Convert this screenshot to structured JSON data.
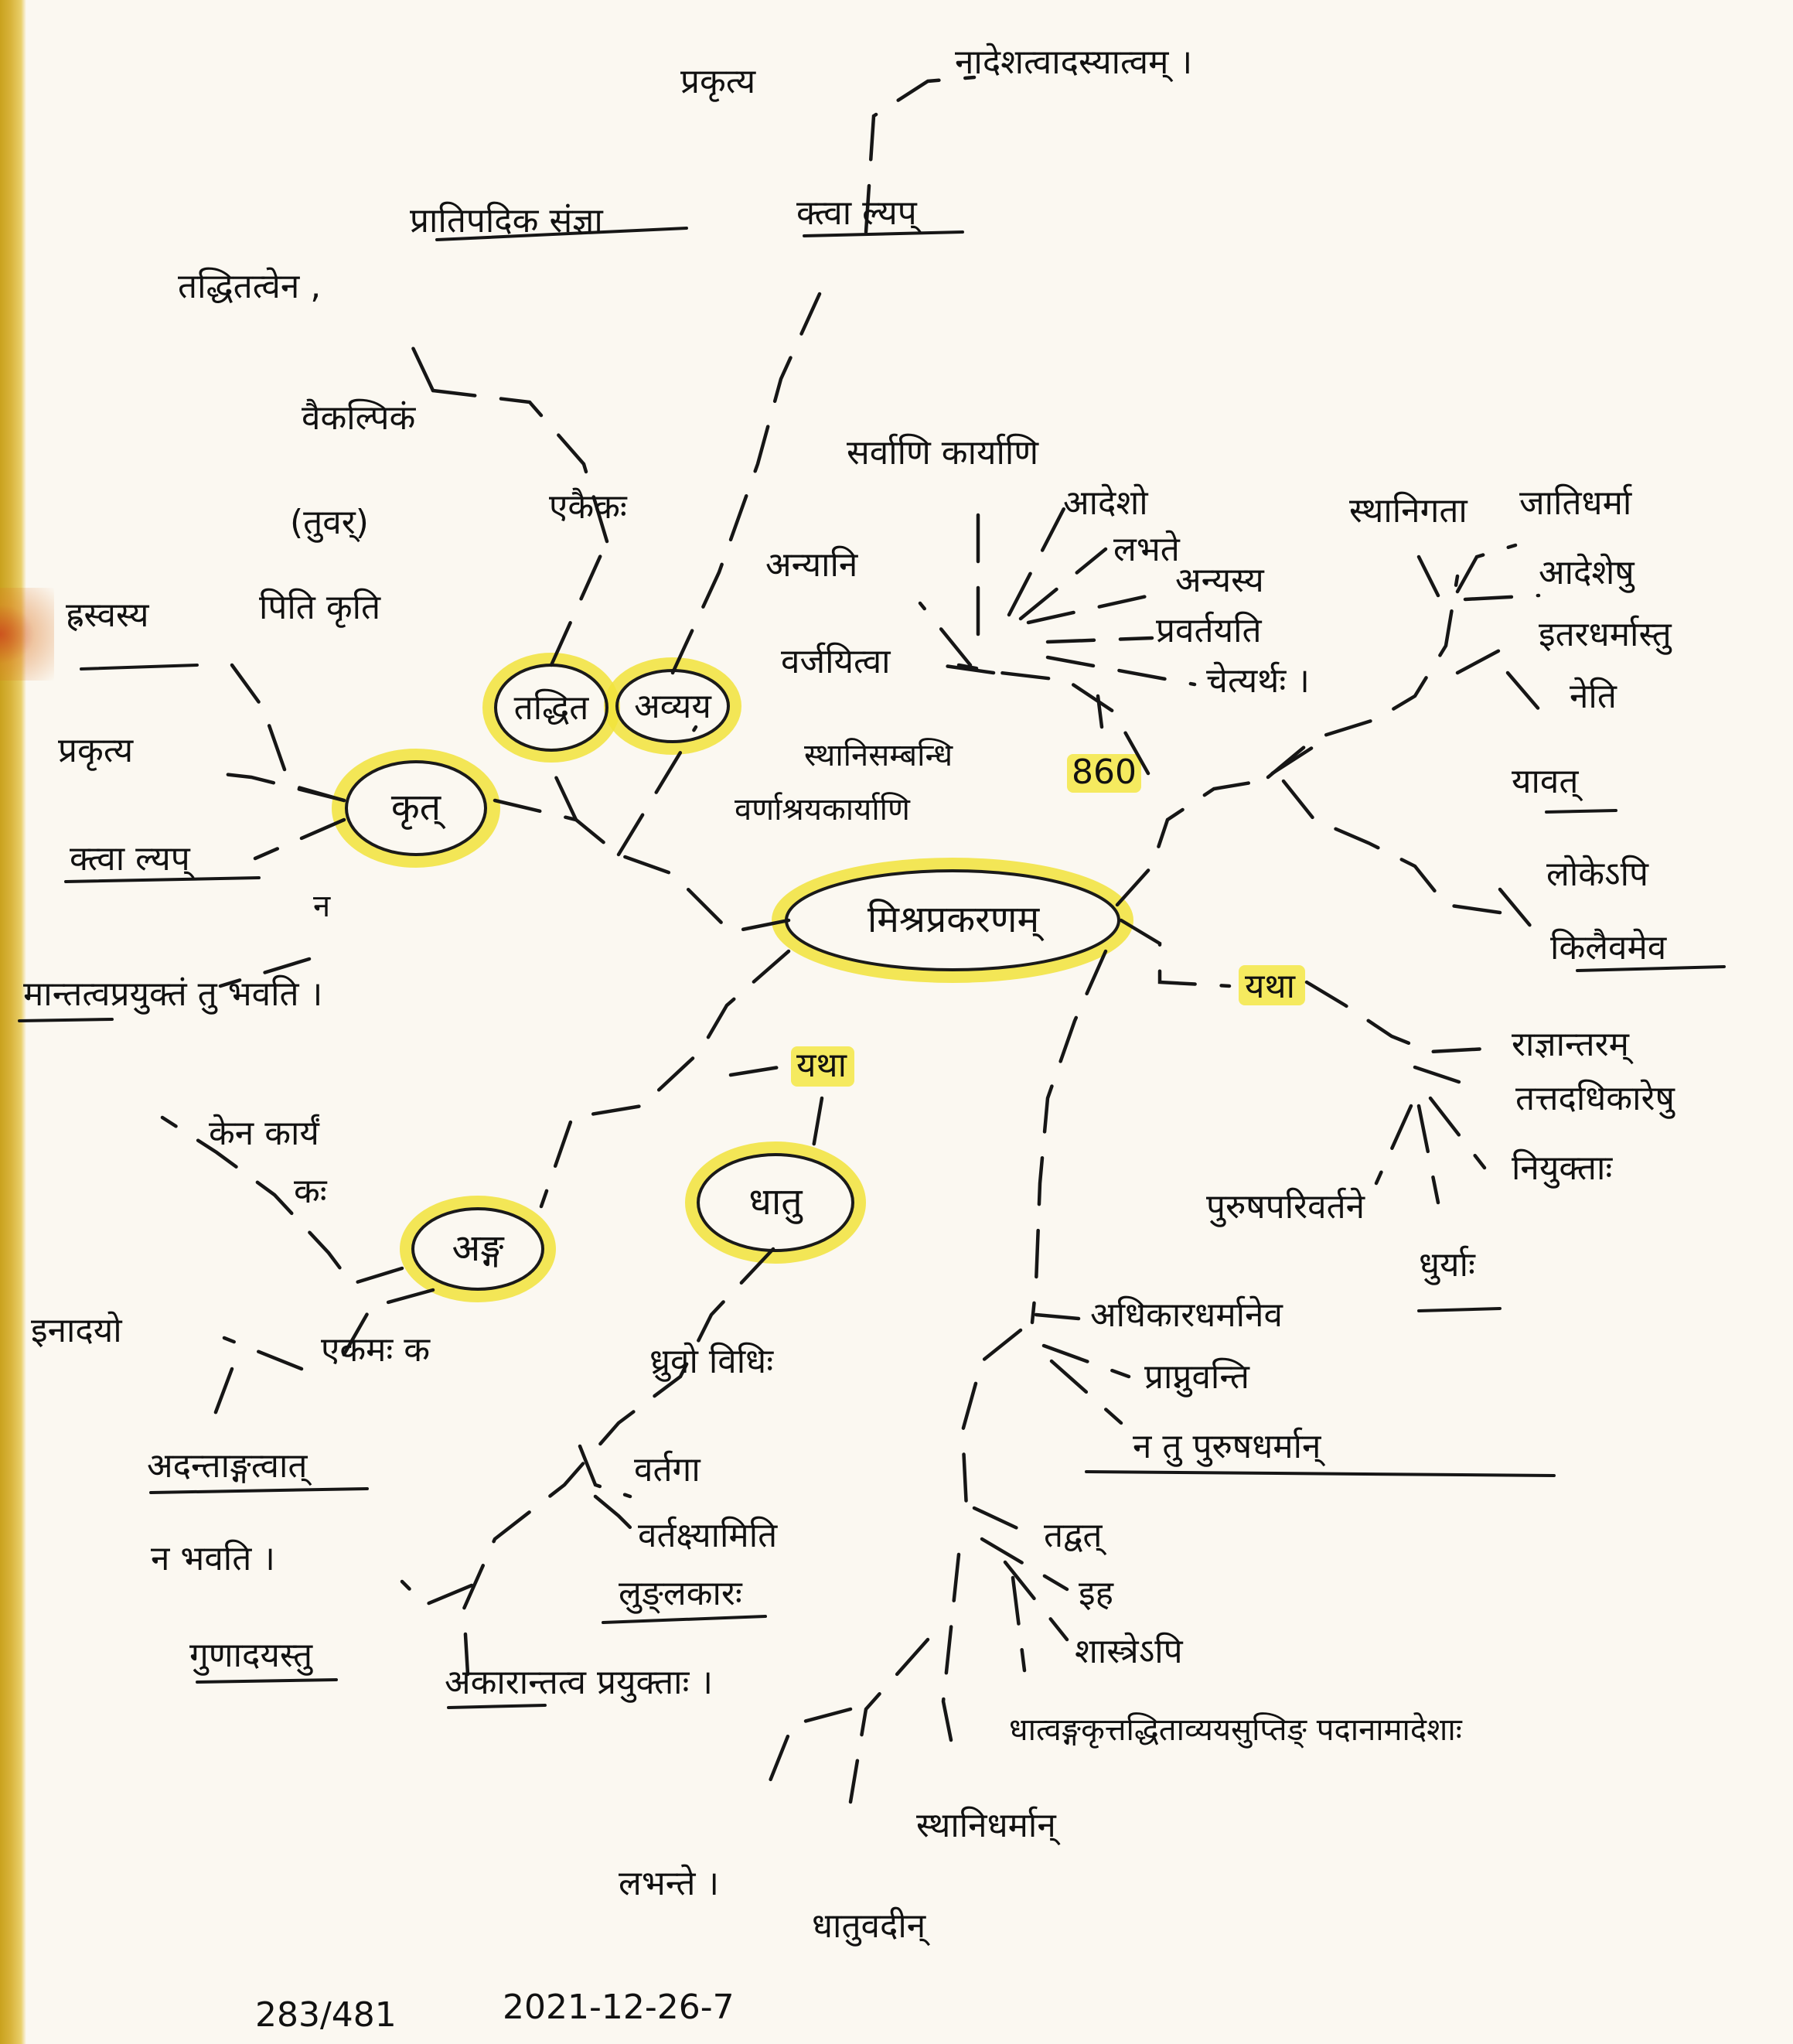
{
  "central": "मिश्रप्रकरणम्",
  "labels": {
    "top_prakrutya": "प्रकृत्य",
    "top_statement": "नादेशत्वादस्यात्वम् ।",
    "top_ktva_lyap": "क्त्वा ल्यप्",
    "taddhitatvena": "तद्धितत्वेन ,",
    "pratipadika_sanjna": "प्रातिपदिक संज्ञा",
    "vaikalpikam": "वैकल्पिकं",
    "ekaika": "एकैकः",
    "tuvar": "(तुवर्)",
    "hrasvasya": "ह्रस्वस्य",
    "piti_kriti": "पिति कृति",
    "krut": "कृत्",
    "taddhita": "तद्धित",
    "avyaya": "अव्यय",
    "prakrutya_left": "प्रकृत्य",
    "ktva_lyap_left": "क्त्वा ल्यप्",
    "na": "न",
    "manta_line": "मान्तत्वप्रयुक्तं तु भवति ।",
    "kena_karyam": "केन कार्यं",
    "kah": "कः",
    "anga": "अङ्ग",
    "dhatu": "धातु",
    "yatha_lower": "यथा",
    "inadayo": "इनादयो",
    "ekamah_ka": "एकमः क",
    "adantangatvat": "अदन्ताङ्गत्वात्",
    "na_bhavati": "न भवति ।",
    "gunadayastu": "गुणादयस्तु",
    "akara_line": "अकारान्तत्व प्रयुक्ताः ।",
    "dhuvo_vidhih": "ध्रुवो विधिः",
    "vartaga": "वर्तगा",
    "vartakshyamiti": "वर्तक्ष्यामिति",
    "lunlakarah": "लुङ्लकारः",
    "sarvani_karyani": "सर्वाणि कार्याणि",
    "anyani": "अन्यानि",
    "varjayitva": "वर्जयित्वा",
    "adesho": "आदेशो",
    "labhate": "लभते",
    "anyasya": "अन्यस्य",
    "pravartayati": "प्रवर्तयति",
    "chetyarthah": "चेत्यर्थः ।",
    "sthani_sambandhi": "स्थानिसम्बन्धि",
    "varnashraya": "वर्णाश्रयकार्याणि",
    "num860": "860",
    "sthanigata": "स्थानिगता",
    "jatidharma": "जातिधर्मा",
    "adesheshu": "आदेशेषु",
    "itaradharmastu": "इतरधर्मास्तु",
    "neti": "नेति",
    "yavat": "यावत्",
    "lokepi": "लोकेऽपि",
    "kilaivamiva": "किलैवमेव",
    "yatha_right": "यथा",
    "rajnantaram": "राज्ञान्तरम्",
    "tattadadhikareshu": "तत्तदधिकारेषु",
    "niyuktah": "नियुक्ताः",
    "purusha_parivartane": "पुरुषपरिवर्तने",
    "dhuryah": "धुर्याः",
    "adhikara_dharmaneva": "अधिकारधर्मानेव",
    "prapnuvanti": "प्राप्नुवन्ति",
    "na_tu_purusha": "न तु पुरुषधर्मान्",
    "tadvat": "तद्वत्",
    "iha": "इह",
    "shastrepi": "शास्त्रेऽपि",
    "dhatvanga_line": "धात्वङ्गकृत्तद्धिताव्ययसुप्तिङ् पदानामादेशाः",
    "labhante": "लभन्ते ।",
    "sthanidharman": "स्थानिधर्मान्",
    "dhatuvadin": "धातुवदीन्"
  },
  "footer": {
    "page": "283/481",
    "date": "2021-12-26-7"
  },
  "highlight_color": "#f3e845"
}
